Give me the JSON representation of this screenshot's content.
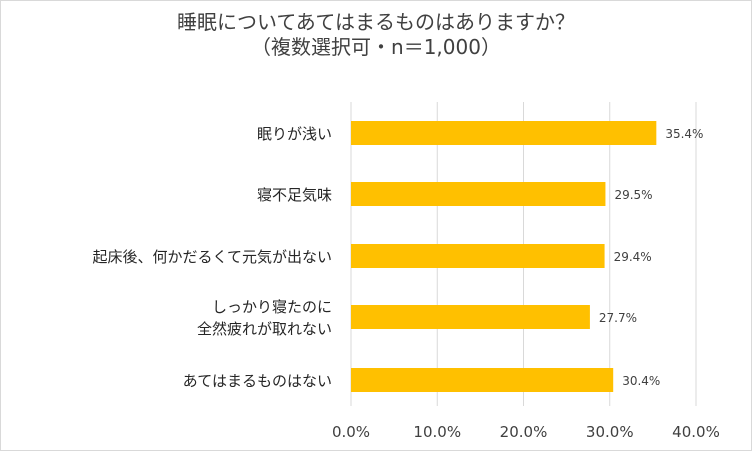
{
  "chart_data": {
    "type": "bar",
    "orientation": "horizontal",
    "title_lines": [
      "睡眠についてあてはまるものはありますか？",
      "（複数選択可・n＝1,000）"
    ],
    "categories": [
      [
        "眠りが浅い"
      ],
      [
        "寝不足気味"
      ],
      [
        "起床後、何かだるくて元気が出ない"
      ],
      [
        "しっかり寝たのに",
        "全然疲れが取れない"
      ],
      [
        "あてはまるものはない"
      ]
    ],
    "values": [
      35.4,
      29.5,
      29.4,
      27.7,
      30.4
    ],
    "value_labels": [
      "35.4%",
      "29.5%",
      "29.4%",
      "27.7%",
      "30.4%"
    ],
    "xlim": [
      0,
      40
    ],
    "ticks": [
      0,
      10,
      20,
      30,
      40
    ],
    "tick_labels": [
      "0.0%",
      "10.0%",
      "20.0%",
      "30.0%",
      "40.0%"
    ],
    "grid": true,
    "bar_color": "#FFC000",
    "grid_color": "#D9D9D9"
  }
}
